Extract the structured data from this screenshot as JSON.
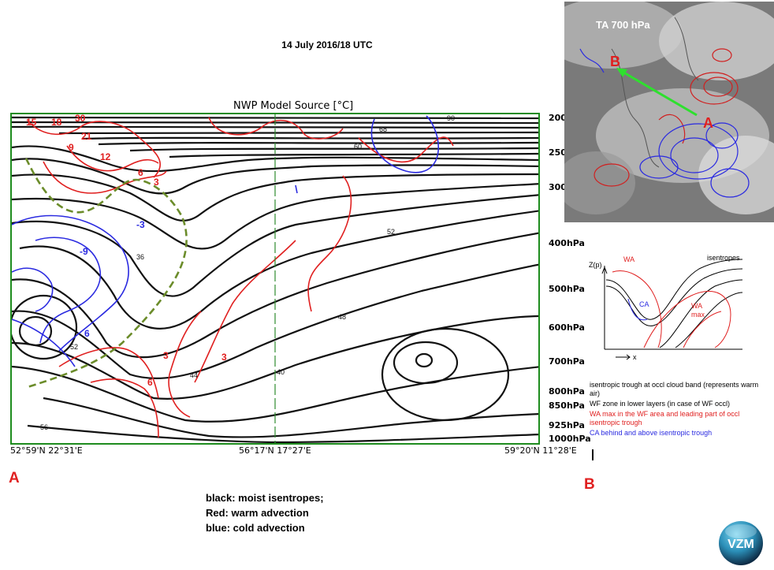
{
  "title": "14 July 2016/18 UTC",
  "cross_section": {
    "title": "NWP Model Source [°C]",
    "pressure_levels": [
      "200hPa",
      "250hPa",
      "300hPa",
      "400hPa",
      "500hPa",
      "600hPa",
      "700hPa",
      "800hPa",
      "850hPa",
      "925hPa",
      "1000hPa"
    ],
    "coords_left": "52°59'N 22°31'E",
    "coords_mid": "56°17'N 17°27'E",
    "coords_right": "59°20'N 11°28'E",
    "red_labels": [
      "15",
      "18",
      "30",
      "21",
      "9",
      "12",
      "6",
      "3",
      "3",
      "3",
      "6"
    ],
    "blue_labels": [
      "-3",
      "-9",
      "6"
    ],
    "black_labels": [
      "68",
      "60",
      "90",
      "52",
      "48",
      "40",
      "44",
      "56",
      "52",
      "36"
    ]
  },
  "endpoint_left": "A",
  "endpoint_right": "B",
  "legend": {
    "line1": "black: moist isentropes;",
    "line2": "Red: warm advection",
    "line3": "blue: cold advection"
  },
  "sat_map": {
    "title": "TA 700 hPa",
    "label_a": "A",
    "label_b": "B"
  },
  "conceptual_model": {
    "z_label": "Z(p)",
    "x_label": "x",
    "wa_label": "WA",
    "ca_label": "CA",
    "isentropes_label": "isentropes",
    "wa_max_label": "WA",
    "wa_max_sub": "max",
    "text_black": "isentropic trough at occl cloud band (represents warm air)",
    "text_black2": "WF zone in lower layers (in case of WF occl)",
    "text_red": "WA max in the WF area and leading part of occl isentropic trough",
    "text_blue": "CA behind and above isentropic trough"
  },
  "logo": "VZM",
  "colors": {
    "frame": "#1e8c1e",
    "warm": "#e02020",
    "cold": "#2a2ae0",
    "dashed": "#6b8c2a"
  }
}
